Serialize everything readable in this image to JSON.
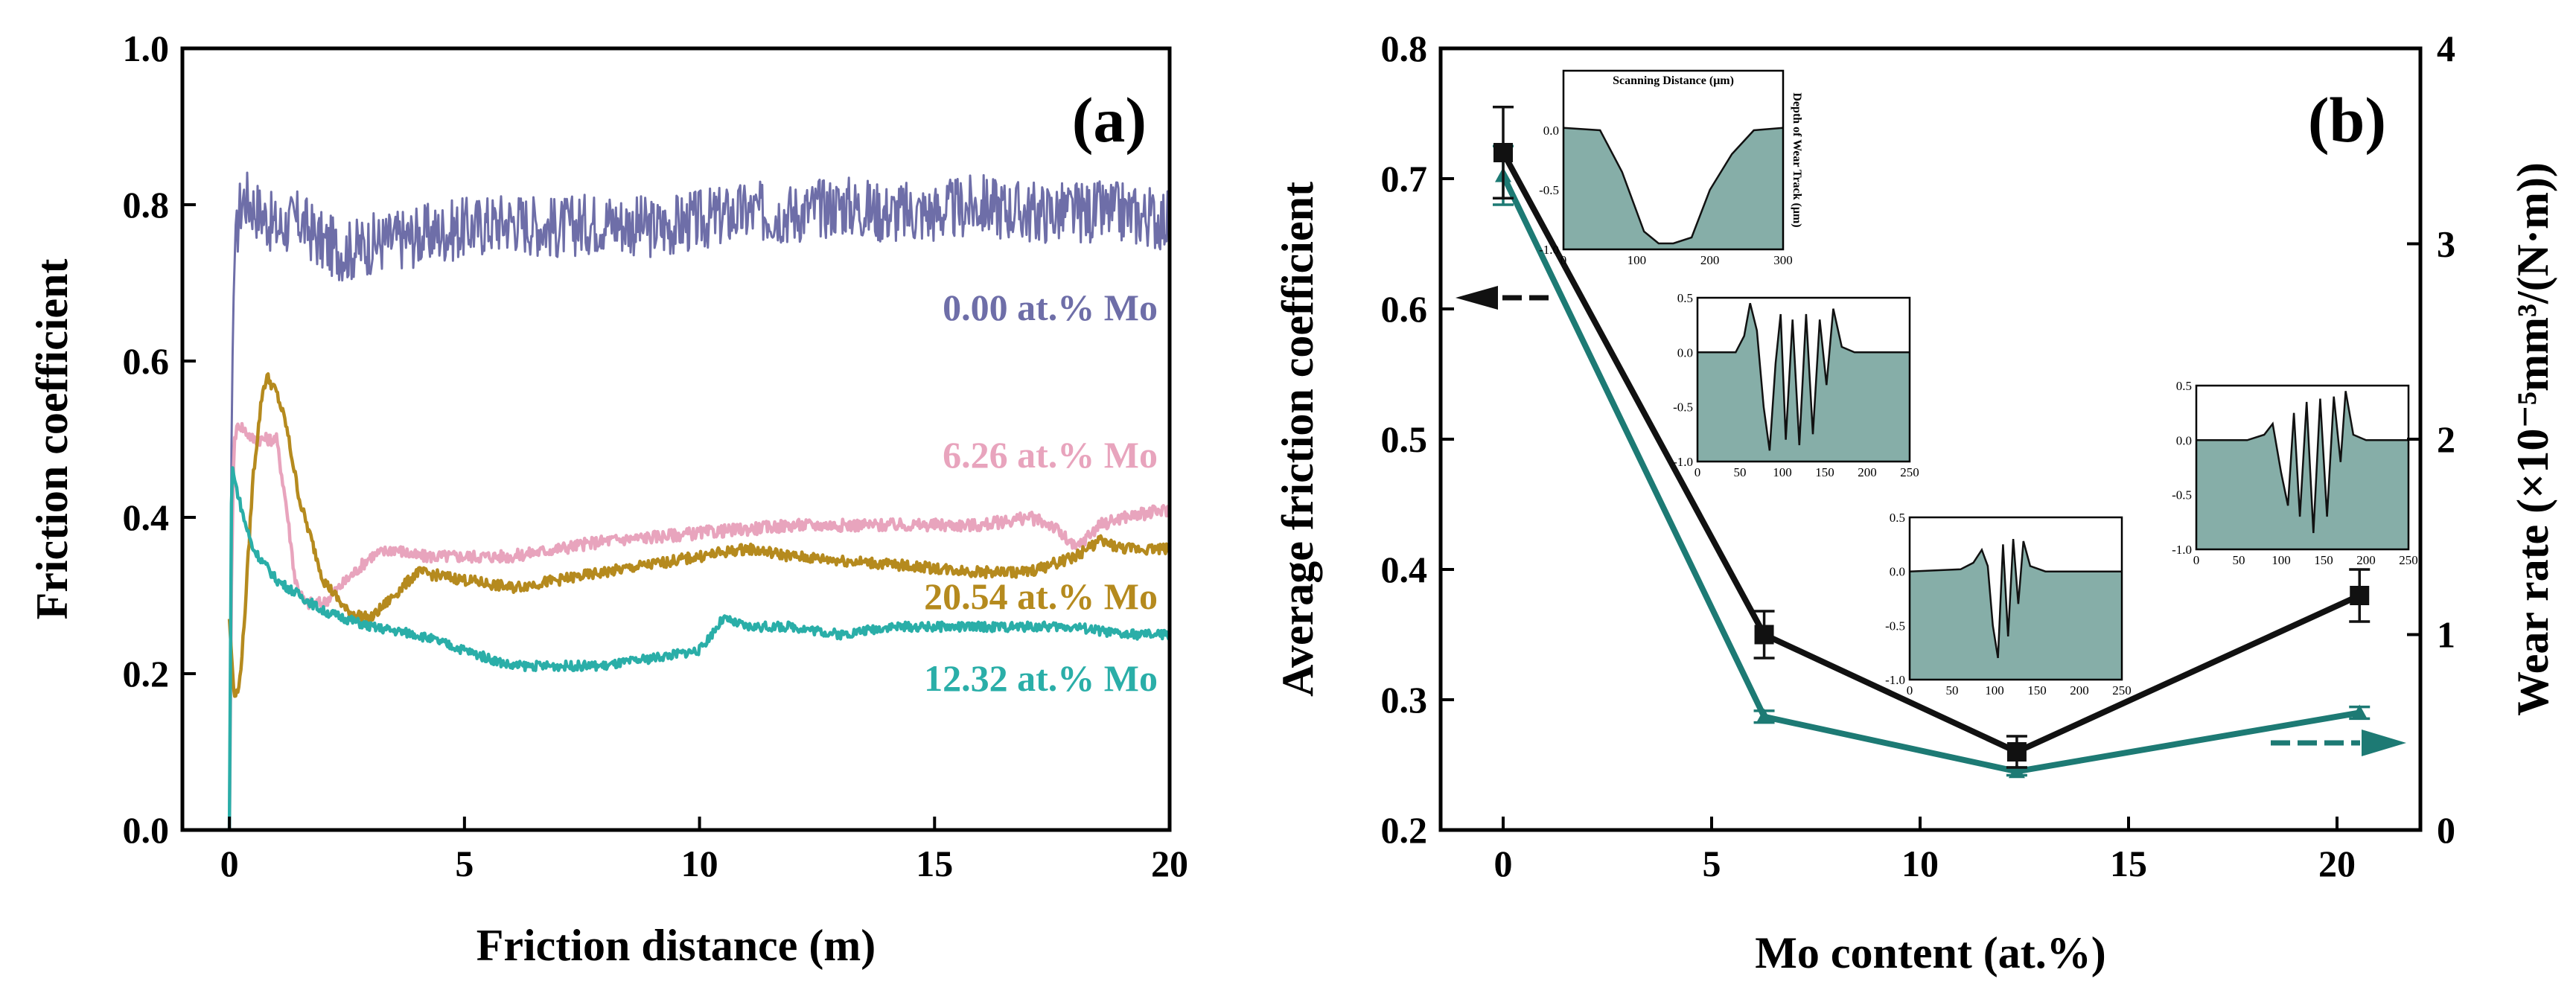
{
  "colors": {
    "mo000": "#6e6ea8",
    "mo626": "#e8a4bd",
    "mo1232": "#2aaea8",
    "mo2054": "#b58a1e",
    "cof_line": "#111111",
    "wear_line": "#1d7a74",
    "inset_fill": "#86aea8"
  },
  "chart_data": [
    {
      "type": "line",
      "panel_label": "(a)",
      "xlabel": "Friction distance (m)",
      "ylabel": "Friction coefficient",
      "xlim": [
        -1,
        20
      ],
      "ylim": [
        0,
        1.0
      ],
      "x_ticks": [
        "0",
        "5",
        "10",
        "15",
        "20"
      ],
      "y_ticks": [
        "0.0",
        "0.2",
        "0.4",
        "0.6",
        "0.8",
        "1.0"
      ],
      "series": [
        {
          "name": "0.00 at.% Mo",
          "x": [
            0,
            0.05,
            0.1,
            0.2,
            0.3,
            0.5,
            1,
            1.5,
            2,
            2.5,
            3,
            4,
            5,
            6,
            7,
            8,
            9,
            10,
            11,
            12,
            13,
            14,
            15,
            16,
            17,
            18,
            19,
            20
          ],
          "y": [
            0,
            0.55,
            0.72,
            0.79,
            0.81,
            0.8,
            0.77,
            0.78,
            0.75,
            0.74,
            0.75,
            0.76,
            0.77,
            0.78,
            0.77,
            0.78,
            0.77,
            0.78,
            0.79,
            0.79,
            0.8,
            0.79,
            0.79,
            0.8,
            0.79,
            0.79,
            0.79,
            0.78
          ],
          "noise": 0.04
        },
        {
          "name": "6.26 at.% Mo",
          "x": [
            0,
            0.05,
            0.1,
            0.2,
            0.5,
            1,
            1.2,
            1.4,
            1.6,
            2,
            2.5,
            3,
            3.5,
            4,
            5,
            6,
            8,
            10,
            12,
            14,
            16,
            17,
            17.5,
            18,
            18.5,
            19,
            20
          ],
          "y": [
            0,
            0.35,
            0.5,
            0.52,
            0.5,
            0.5,
            0.42,
            0.32,
            0.29,
            0.29,
            0.32,
            0.35,
            0.36,
            0.35,
            0.35,
            0.35,
            0.37,
            0.38,
            0.39,
            0.39,
            0.39,
            0.4,
            0.39,
            0.36,
            0.39,
            0.4,
            0.41
          ],
          "noise": 0.008
        },
        {
          "name": "20.54 at.% Mo",
          "x": [
            0,
            0.1,
            0.2,
            0.3,
            0.5,
            0.7,
            0.8,
            1,
            1.2,
            1.5,
            2,
            2.5,
            3,
            3.5,
            4,
            5,
            6,
            8,
            10,
            11,
            12,
            14,
            16,
            17,
            18,
            18.5,
            19,
            20
          ],
          "y": [
            0.27,
            0.17,
            0.18,
            0.25,
            0.45,
            0.56,
            0.58,
            0.56,
            0.52,
            0.42,
            0.32,
            0.28,
            0.27,
            0.3,
            0.33,
            0.32,
            0.31,
            0.33,
            0.35,
            0.36,
            0.35,
            0.34,
            0.33,
            0.33,
            0.35,
            0.37,
            0.36,
            0.36
          ],
          "noise": 0.007
        },
        {
          "name": "12.32 at.% Mo",
          "x": [
            0,
            0.05,
            0.1,
            0.3,
            0.5,
            1,
            2,
            3,
            4,
            5,
            6,
            7,
            8,
            9,
            10,
            10.5,
            11,
            12,
            13,
            14,
            15,
            16,
            17,
            18,
            19,
            20
          ],
          "y": [
            0,
            0.47,
            0.45,
            0.4,
            0.36,
            0.32,
            0.28,
            0.26,
            0.25,
            0.23,
            0.21,
            0.21,
            0.21,
            0.22,
            0.23,
            0.27,
            0.26,
            0.26,
            0.25,
            0.26,
            0.26,
            0.26,
            0.26,
            0.26,
            0.25,
            0.25
          ],
          "noise": 0.006
        }
      ]
    },
    {
      "type": "line",
      "panel_label": "(b)",
      "xlabel": "Mo content (at.%)",
      "ylabel": "Average friction coefficient",
      "y2label": "Wear rate (×10⁻⁵mm³/(N·m))",
      "xlim": [
        -1.5,
        22
      ],
      "ylim": [
        0.2,
        0.8
      ],
      "y2lim": [
        0,
        4
      ],
      "x_ticks": [
        "0",
        "5",
        "10",
        "15",
        "20"
      ],
      "y_ticks": [
        "0.2",
        "0.3",
        "0.4",
        "0.5",
        "0.6",
        "0.7",
        "0.8"
      ],
      "y2_ticks": [
        "0",
        "1",
        "2",
        "3",
        "4"
      ],
      "series": [
        {
          "name": "Average friction coefficient",
          "axis": "left",
          "x": [
            0,
            6.26,
            12.32,
            20.54
          ],
          "y": [
            0.72,
            0.35,
            0.26,
            0.38
          ],
          "error": [
            0.035,
            0.018,
            0.012,
            0.02
          ]
        },
        {
          "name": "Wear rate",
          "axis": "right",
          "x": [
            0,
            6.26,
            12.32,
            20.54
          ],
          "y": [
            3.35,
            0.58,
            0.3,
            0.6
          ],
          "error": [
            0.15,
            0.03,
            0.02,
            0.03
          ]
        }
      ],
      "insets": [
        {
          "title": "Scanning Distance (μm)",
          "side_label": "Depth of Wear Track (μm)",
          "x_ticks": [
            "0",
            "100",
            "200",
            "300"
          ],
          "y_ticks": [
            "0.0",
            "-0.5",
            "-1.0"
          ],
          "profile": [
            [
              0,
              0.02
            ],
            [
              50,
              0.0
            ],
            [
              80,
              -0.35
            ],
            [
              110,
              -0.85
            ],
            [
              130,
              -0.95
            ],
            [
              150,
              -0.95
            ],
            [
              175,
              -0.9
            ],
            [
              200,
              -0.5
            ],
            [
              230,
              -0.2
            ],
            [
              260,
              0.0
            ],
            [
              300,
              0.02
            ]
          ]
        },
        {
          "title": "",
          "side_label": "",
          "x_ticks": [
            "0",
            "50",
            "100",
            "150",
            "200",
            "250"
          ],
          "y_ticks": [
            "0.5",
            "0.0",
            "-0.5",
            "-1.0"
          ],
          "profile": [
            [
              0,
              0.0
            ],
            [
              45,
              0.0
            ],
            [
              55,
              0.15
            ],
            [
              62,
              0.45
            ],
            [
              70,
              0.2
            ],
            [
              78,
              -0.5
            ],
            [
              85,
              -0.9
            ],
            [
              92,
              -0.1
            ],
            [
              98,
              0.35
            ],
            [
              104,
              -0.8
            ],
            [
              112,
              0.3
            ],
            [
              120,
              -0.85
            ],
            [
              128,
              0.35
            ],
            [
              136,
              -0.75
            ],
            [
              144,
              0.3
            ],
            [
              152,
              -0.3
            ],
            [
              160,
              0.4
            ],
            [
              170,
              0.05
            ],
            [
              185,
              0.0
            ],
            [
              250,
              0.0
            ]
          ]
        },
        {
          "title": "",
          "side_label": "",
          "x_ticks": [
            "0",
            "50",
            "100",
            "150",
            "200",
            "250"
          ],
          "y_ticks": [
            "0.5",
            "0.0",
            "-0.5",
            "-1.0"
          ],
          "profile": [
            [
              0,
              0.0
            ],
            [
              60,
              0.02
            ],
            [
              75,
              0.08
            ],
            [
              85,
              0.2
            ],
            [
              92,
              0.05
            ],
            [
              98,
              -0.5
            ],
            [
              104,
              -0.8
            ],
            [
              110,
              0.25
            ],
            [
              116,
              -0.6
            ],
            [
              122,
              0.3
            ],
            [
              128,
              -0.3
            ],
            [
              134,
              0.28
            ],
            [
              142,
              0.05
            ],
            [
              160,
              0.0
            ],
            [
              250,
              0.0
            ]
          ]
        },
        {
          "title": "",
          "side_label": "",
          "x_ticks": [
            "0",
            "50",
            "100",
            "150",
            "200",
            "250"
          ],
          "y_ticks": [
            "0.5",
            "0.0",
            "-0.5",
            "-1.0"
          ],
          "profile": [
            [
              0,
              0.0
            ],
            [
              60,
              0.0
            ],
            [
              80,
              0.05
            ],
            [
              90,
              0.15
            ],
            [
              100,
              -0.3
            ],
            [
              108,
              -0.6
            ],
            [
              115,
              0.25
            ],
            [
              122,
              -0.7
            ],
            [
              130,
              0.35
            ],
            [
              138,
              -0.85
            ],
            [
              146,
              0.38
            ],
            [
              154,
              -0.7
            ],
            [
              162,
              0.4
            ],
            [
              170,
              -0.2
            ],
            [
              176,
              0.45
            ],
            [
              185,
              0.05
            ],
            [
              200,
              0.0
            ],
            [
              250,
              0.0
            ]
          ]
        }
      ]
    }
  ]
}
